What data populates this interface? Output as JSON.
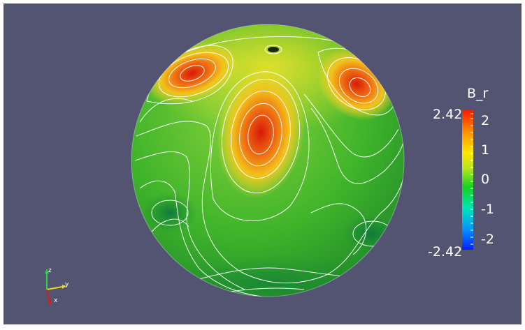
{
  "colorbar": {
    "title": "B_r",
    "max_label": "2.42",
    "min_label": "-2.42",
    "ticks": [
      "2",
      "1",
      "0",
      "-1",
      "-2"
    ],
    "colors": [
      "#ff1a00",
      "#ff8c00",
      "#ffe600",
      "#c8e61e",
      "#14d21e",
      "#00e6b4",
      "#0096ff",
      "#0a1eff"
    ]
  },
  "axes": {
    "x": "x",
    "y": "y",
    "z": "z"
  },
  "colors": {
    "background": "#535471",
    "contour": "#ffffff",
    "sphere_base": "#3fbf22",
    "high": "#e02a0a",
    "mid": "#f0d020",
    "low": "#168a3a"
  }
}
